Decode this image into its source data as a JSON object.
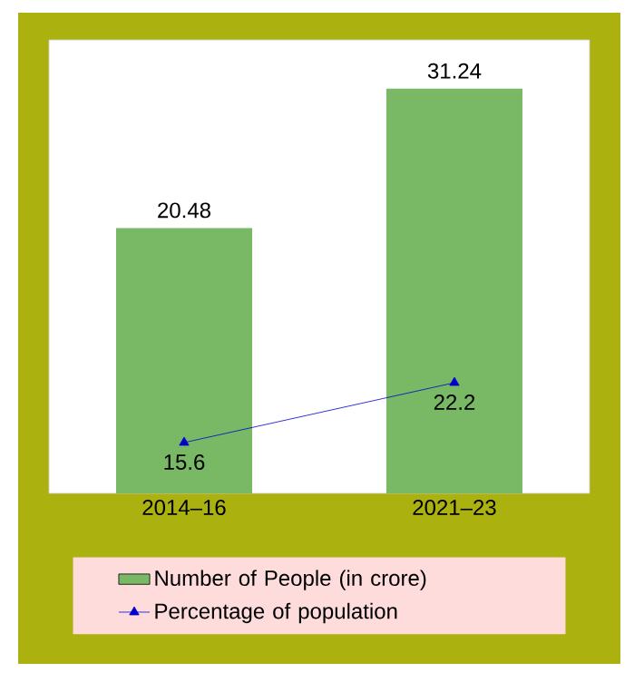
{
  "chart_data": {
    "type": "bar",
    "categories": [
      "2014–16",
      "2021–23"
    ],
    "series": [
      {
        "name": "Number of People (in crore)",
        "color": "#79b966",
        "values": [
          20.48,
          31.24
        ]
      },
      {
        "name": "Percentage of population",
        "type": "line",
        "axis": "y2",
        "color": "#0000cc",
        "values": [
          15.6,
          22.2
        ]
      }
    ],
    "data_labels": true,
    "ylim": [
      0,
      35
    ],
    "y2lim": [
      10,
      60
    ],
    "tick_labels": "x",
    "legend": "bottom",
    "marker": "triangle"
  }
}
